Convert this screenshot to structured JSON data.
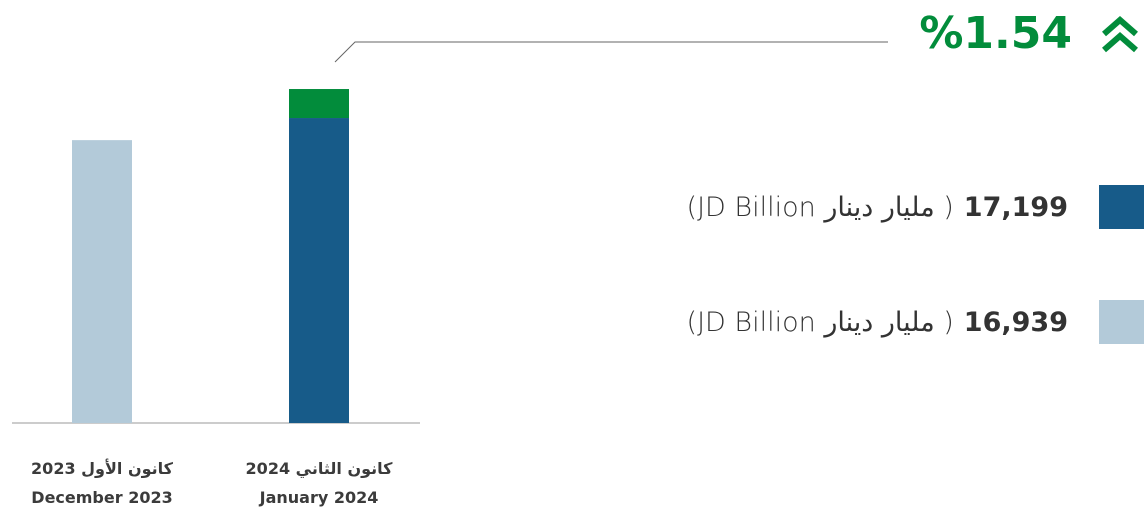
{
  "chart_data": {
    "type": "bar",
    "change": {
      "value": 1.54,
      "label": "%1.54"
    },
    "categories": [
      "December 2023",
      "January  2024"
    ],
    "categories_ar": [
      "كانون الأول 2023",
      "كانون الثاني 2024"
    ],
    "values": [
      16.939,
      17.199
    ],
    "value_labels": [
      "16,939",
      "17,199"
    ],
    "unit": "( مليار دينار JD Billion)",
    "colors": [
      "#b3cad9",
      "#175b89"
    ],
    "increase_color": "#028c3b",
    "ylim": [
      15.5,
      17.25
    ]
  }
}
